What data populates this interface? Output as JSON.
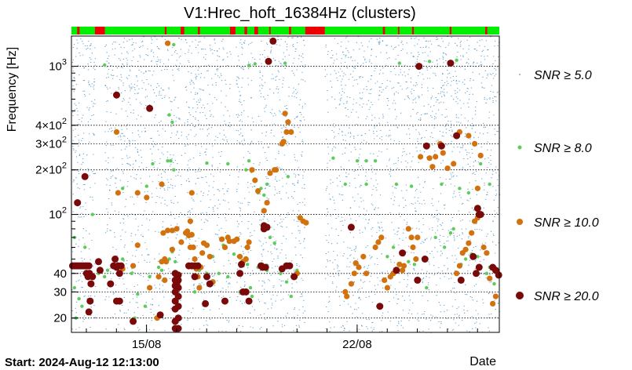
{
  "chart_data": {
    "type": "scatter",
    "title": "V1:Hrec_hoft_16384Hz (clusters)",
    "ylabel": "Frequency [Hz]",
    "xlabel": "Date",
    "start_label": "Start: 2024-Aug-12 12:13:00",
    "y_scale": "log",
    "ylim": [
      16,
      1600
    ],
    "xlim_days": [
      0,
      14.22
    ],
    "x_ticks": [
      {
        "label": "15/08",
        "day": 2.495
      },
      {
        "label": "22/08",
        "day": 9.495
      }
    ],
    "y_ticks": [
      {
        "value": 1000,
        "label": "10",
        "exp": "3"
      },
      {
        "value": 400,
        "label": "4×10",
        "exp": "2"
      },
      {
        "value": 300,
        "label": "3×10",
        "exp": "2"
      },
      {
        "value": 200,
        "label": "2×10",
        "exp": "2"
      },
      {
        "value": 100,
        "label": "10",
        "exp": "2"
      },
      {
        "value": 40,
        "label": "40",
        "exp": ""
      },
      {
        "value": 30,
        "label": "30",
        "exp": ""
      },
      {
        "value": 20,
        "label": "20",
        "exp": ""
      }
    ],
    "grid": "dotted horizontal",
    "legend_position": "right",
    "series": [
      {
        "name": "SNR ≥ 5.0",
        "snr_min": 5.0,
        "color": "#1f77b4"
      },
      {
        "name": "SNR ≥ 8.0",
        "snr_min": 8.0,
        "color": "#5ccc5c"
      },
      {
        "name": "SNR ≥ 10.0",
        "snr_min": 10.0,
        "color": "#d2720e"
      },
      {
        "name": "SNR ≥ 20.0",
        "snr_min": 20.0,
        "color": "#7a0a0a"
      }
    ],
    "state_bar": {
      "ok_color": "#00ee00",
      "off_color": "#ee0000",
      "off_intervals_day": [
        [
          0.19,
          0.27
        ],
        [
          0.78,
          1.11
        ],
        [
          3.1,
          3.16
        ],
        [
          3.63,
          3.75
        ],
        [
          4.2,
          4.27
        ],
        [
          5.27,
          5.45
        ],
        [
          5.75,
          5.84
        ],
        [
          6.08,
          6.2
        ],
        [
          6.57,
          6.62
        ],
        [
          7.23,
          7.3
        ],
        [
          7.77,
          8.42
        ],
        [
          10.35,
          10.42
        ],
        [
          10.85,
          10.9
        ],
        [
          11.32,
          11.38
        ],
        [
          12.57,
          12.63
        ],
        [
          13.75,
          13.82
        ]
      ]
    },
    "gaps_day": [
      [
        0.78,
        1.1
      ],
      [
        3.1,
        3.15
      ],
      [
        3.65,
        3.75
      ],
      [
        5.28,
        5.45
      ],
      [
        5.75,
        5.84
      ],
      [
        6.09,
        6.2
      ],
      [
        7.23,
        7.3
      ],
      [
        7.75,
        8.42
      ],
      [
        10.36,
        10.42
      ]
    ],
    "points_snr20": [
      [
        0.04,
        45
      ],
      [
        0.1,
        45
      ],
      [
        0.16,
        45
      ],
      [
        0.22,
        45
      ],
      [
        0.28,
        45
      ],
      [
        0.34,
        45
      ],
      [
        0.4,
        45
      ],
      [
        0.46,
        45
      ],
      [
        0.52,
        45
      ],
      [
        0.58,
        45
      ],
      [
        0.2,
        120
      ],
      [
        0.45,
        180
      ],
      [
        0.5,
        40
      ],
      [
        0.55,
        38
      ],
      [
        0.6,
        40
      ],
      [
        0.7,
        38
      ],
      [
        0.65,
        34
      ],
      [
        0.62,
        26
      ],
      [
        0.58,
        22
      ],
      [
        0.9,
        48
      ],
      [
        0.95,
        42
      ],
      [
        1.3,
        34
      ],
      [
        1.45,
        50
      ],
      [
        1.5,
        26
      ],
      [
        1.5,
        44
      ],
      [
        1.55,
        45
      ],
      [
        1.6,
        40
      ],
      [
        1.65,
        45
      ],
      [
        1.6,
        26
      ],
      [
        1.4,
        45
      ],
      [
        1.5,
        640
      ],
      [
        2.05,
        19
      ],
      [
        2.6,
        520
      ],
      [
        2.95,
        21
      ],
      [
        3.45,
        23
      ],
      [
        3.45,
        26
      ],
      [
        3.45,
        30
      ],
      [
        3.45,
        33
      ],
      [
        3.45,
        36
      ],
      [
        3.45,
        40
      ],
      [
        3.45,
        19
      ],
      [
        3.45,
        17
      ],
      [
        3.55,
        17
      ],
      [
        3.55,
        20
      ],
      [
        3.55,
        24
      ],
      [
        3.55,
        28
      ],
      [
        3.55,
        32
      ],
      [
        3.55,
        36
      ],
      [
        3.55,
        39
      ],
      [
        3.5,
        34
      ],
      [
        3.9,
        45
      ],
      [
        4.0,
        45
      ],
      [
        4.1,
        45
      ],
      [
        4.2,
        45
      ],
      [
        4.1,
        38
      ],
      [
        4.5,
        38
      ],
      [
        4.6,
        34
      ],
      [
        4.45,
        25
      ],
      [
        5.1,
        26
      ],
      [
        5.6,
        40
      ],
      [
        5.7,
        30
      ],
      [
        5.8,
        30
      ],
      [
        5.9,
        26
      ],
      [
        5.65,
        46
      ],
      [
        6.4,
        84
      ],
      [
        6.3,
        45
      ],
      [
        6.35,
        44
      ],
      [
        6.45,
        44
      ],
      [
        6.4,
        80
      ],
      [
        6.5,
        82
      ],
      [
        6.55,
        1080
      ],
      [
        6.7,
        1480
      ],
      [
        7.0,
        43
      ],
      [
        7.15,
        45
      ],
      [
        7.25,
        45
      ],
      [
        7.4,
        38
      ],
      [
        9.3,
        82
      ],
      [
        10.25,
        24
      ],
      [
        10.8,
        42
      ],
      [
        11.0,
        55
      ],
      [
        11.5,
        36
      ],
      [
        11.75,
        50
      ],
      [
        11.55,
        1000
      ],
      [
        12.95,
        36
      ],
      [
        13.35,
        52
      ],
      [
        13.45,
        40
      ],
      [
        13.55,
        44
      ],
      [
        13.55,
        100
      ],
      [
        13.5,
        110
      ],
      [
        13.6,
        100
      ],
      [
        14.2,
        39
      ],
      [
        14.1,
        42
      ],
      [
        14.0,
        44
      ],
      [
        11.8,
        290
      ],
      [
        12.3,
        290
      ],
      [
        12.6,
        1050
      ],
      [
        12.8,
        340
      ]
    ],
    "points_snr10": [
      [
        1.5,
        360
      ],
      [
        1.55,
        140
      ],
      [
        2.2,
        140
      ],
      [
        2.5,
        130
      ],
      [
        2.85,
        20
      ],
      [
        3.0,
        160
      ],
      [
        3.05,
        75
      ],
      [
        3.1,
        50
      ],
      [
        3.15,
        48
      ],
      [
        3.2,
        78
      ],
      [
        3.2,
        1430
      ],
      [
        3.35,
        78
      ],
      [
        3.5,
        80
      ],
      [
        3.65,
        65
      ],
      [
        3.8,
        75
      ],
      [
        3.85,
        77
      ],
      [
        3.9,
        72
      ],
      [
        3.95,
        60
      ],
      [
        4.0,
        140
      ],
      [
        3.95,
        90
      ],
      [
        4.0,
        73
      ],
      [
        4.05,
        60
      ],
      [
        4.1,
        50
      ],
      [
        4.15,
        43
      ],
      [
        4.2,
        38
      ],
      [
        4.25,
        32
      ],
      [
        4.3,
        44
      ],
      [
        4.35,
        55
      ],
      [
        4.4,
        64
      ],
      [
        4.5,
        62
      ],
      [
        4.6,
        52
      ],
      [
        5.0,
        68
      ],
      [
        5.1,
        60
      ],
      [
        5.2,
        70
      ],
      [
        5.25,
        66
      ],
      [
        5.4,
        66
      ],
      [
        5.5,
        68
      ],
      [
        5.6,
        52
      ],
      [
        5.7,
        48
      ],
      [
        5.8,
        50
      ],
      [
        5.85,
        60
      ],
      [
        5.9,
        65
      ],
      [
        6.0,
        200
      ],
      [
        6.1,
        170
      ],
      [
        6.2,
        144
      ],
      [
        6.4,
        106
      ],
      [
        6.5,
        120
      ],
      [
        6.6,
        190
      ],
      [
        6.75,
        200
      ],
      [
        6.8,
        200
      ],
      [
        7.0,
        300
      ],
      [
        7.05,
        310
      ],
      [
        7.1,
        480
      ],
      [
        7.15,
        360
      ],
      [
        7.2,
        420
      ],
      [
        7.3,
        360
      ],
      [
        7.5,
        40
      ],
      [
        7.6,
        95
      ],
      [
        7.7,
        90
      ],
      [
        7.8,
        88
      ],
      [
        9.1,
        30
      ],
      [
        9.15,
        28
      ],
      [
        9.3,
        34
      ],
      [
        9.4,
        40
      ],
      [
        9.45,
        47
      ],
      [
        9.55,
        44
      ],
      [
        9.7,
        52
      ],
      [
        9.8,
        40
      ],
      [
        10.1,
        60
      ],
      [
        10.2,
        65
      ],
      [
        10.3,
        70
      ],
      [
        10.4,
        36
      ],
      [
        10.5,
        32
      ],
      [
        10.6,
        38
      ],
      [
        10.7,
        40
      ],
      [
        10.9,
        46
      ],
      [
        11.0,
        42
      ],
      [
        11.05,
        45
      ],
      [
        11.2,
        80
      ],
      [
        11.3,
        70
      ],
      [
        11.35,
        60
      ],
      [
        11.45,
        50
      ],
      [
        11.5,
        70
      ],
      [
        11.6,
        245
      ],
      [
        11.9,
        240
      ],
      [
        12.0,
        210
      ],
      [
        12.1,
        245
      ],
      [
        12.25,
        300
      ],
      [
        12.35,
        260
      ],
      [
        12.5,
        205
      ],
      [
        12.7,
        220
      ],
      [
        12.8,
        40
      ],
      [
        12.9,
        45
      ],
      [
        13.0,
        55
      ],
      [
        13.1,
        58
      ],
      [
        13.2,
        64
      ],
      [
        13.3,
        75
      ],
      [
        13.4,
        90
      ],
      [
        13.5,
        95
      ],
      [
        13.7,
        60
      ],
      [
        13.8,
        55
      ],
      [
        13.9,
        37
      ],
      [
        14.0,
        25
      ],
      [
        14.1,
        28
      ],
      [
        12.9,
        360
      ],
      [
        13.2,
        340
      ],
      [
        13.4,
        300
      ],
      [
        13.6,
        250
      ],
      [
        13.5,
        150
      ],
      [
        1.7,
        43
      ],
      [
        2.05,
        45
      ],
      [
        2.2,
        62
      ],
      [
        2.6,
        32
      ],
      [
        2.9,
        38
      ],
      [
        3.0,
        48
      ],
      [
        3.1,
        36
      ],
      [
        3.35,
        58
      ],
      [
        4.7,
        35
      ]
    ],
    "points_snr8": [
      [
        0.1,
        32
      ],
      [
        0.15,
        20
      ],
      [
        0.25,
        27
      ],
      [
        0.35,
        24
      ],
      [
        0.45,
        60
      ],
      [
        0.7,
        100
      ],
      [
        0.9,
        40
      ],
      [
        1.1,
        38
      ],
      [
        1.2,
        42
      ],
      [
        1.7,
        50
      ],
      [
        2.0,
        40
      ],
      [
        2.1,
        20
      ],
      [
        2.2,
        29
      ],
      [
        2.45,
        24
      ],
      [
        2.6,
        38
      ],
      [
        2.9,
        44
      ],
      [
        3.0,
        42
      ],
      [
        3.25,
        50
      ],
      [
        3.35,
        56
      ],
      [
        3.45,
        48
      ],
      [
        4.1,
        30
      ],
      [
        4.25,
        42
      ],
      [
        4.5,
        40
      ],
      [
        4.7,
        52
      ],
      [
        4.9,
        40
      ],
      [
        5.05,
        62
      ],
      [
        5.2,
        38
      ],
      [
        5.4,
        54
      ],
      [
        5.55,
        52
      ],
      [
        5.6,
        30
      ],
      [
        5.75,
        30
      ],
      [
        5.85,
        46
      ],
      [
        5.95,
        32
      ],
      [
        6.0,
        28
      ],
      [
        6.2,
        44
      ],
      [
        6.35,
        46
      ],
      [
        6.45,
        44
      ],
      [
        6.5,
        42
      ],
      [
        6.6,
        70
      ],
      [
        6.75,
        64
      ],
      [
        6.95,
        40
      ],
      [
        7.15,
        35
      ],
      [
        7.3,
        28
      ],
      [
        7.5,
        42
      ],
      [
        1.7,
        150
      ],
      [
        2.5,
        155
      ],
      [
        3.2,
        230
      ],
      [
        3.3,
        230
      ],
      [
        3.4,
        200
      ],
      [
        5.8,
        200
      ],
      [
        5.9,
        230
      ],
      [
        6.2,
        140
      ],
      [
        6.3,
        150
      ],
      [
        6.4,
        135
      ],
      [
        6.5,
        160
      ],
      [
        7.2,
        180
      ],
      [
        9.8,
        230
      ],
      [
        10.1,
        230
      ],
      [
        10.8,
        160
      ],
      [
        11.3,
        155
      ],
      [
        12.3,
        160
      ],
      [
        12.9,
        150
      ],
      [
        13.2,
        140
      ],
      [
        13.6,
        220
      ],
      [
        13.9,
        160
      ],
      [
        8.7,
        240
      ],
      [
        9.1,
        160
      ],
      [
        9.5,
        230
      ],
      [
        10.5,
        52
      ],
      [
        10.7,
        60
      ],
      [
        11.2,
        48
      ],
      [
        11.4,
        46
      ],
      [
        11.8,
        32
      ],
      [
        12.1,
        70
      ],
      [
        12.4,
        60
      ],
      [
        12.6,
        75
      ],
      [
        12.7,
        80
      ],
      [
        12.95,
        46
      ],
      [
        13.1,
        50
      ],
      [
        13.3,
        54
      ],
      [
        13.5,
        52
      ],
      [
        13.8,
        40
      ],
      [
        13.9,
        44
      ],
      [
        14.05,
        34
      ],
      [
        3.25,
        470
      ],
      [
        3.35,
        420
      ],
      [
        3.4,
        1400
      ],
      [
        1.1,
        1020
      ],
      [
        5.9,
        1010
      ],
      [
        6.1,
        1040
      ],
      [
        7.1,
        1050
      ],
      [
        10.9,
        1050
      ],
      [
        11.9,
        1080
      ],
      [
        12.8,
        1100
      ],
      [
        5.2,
        220
      ],
      [
        4.5,
        222
      ],
      [
        2.7,
        220
      ],
      [
        0.1,
        70
      ],
      [
        9.8,
        160
      ]
    ]
  }
}
